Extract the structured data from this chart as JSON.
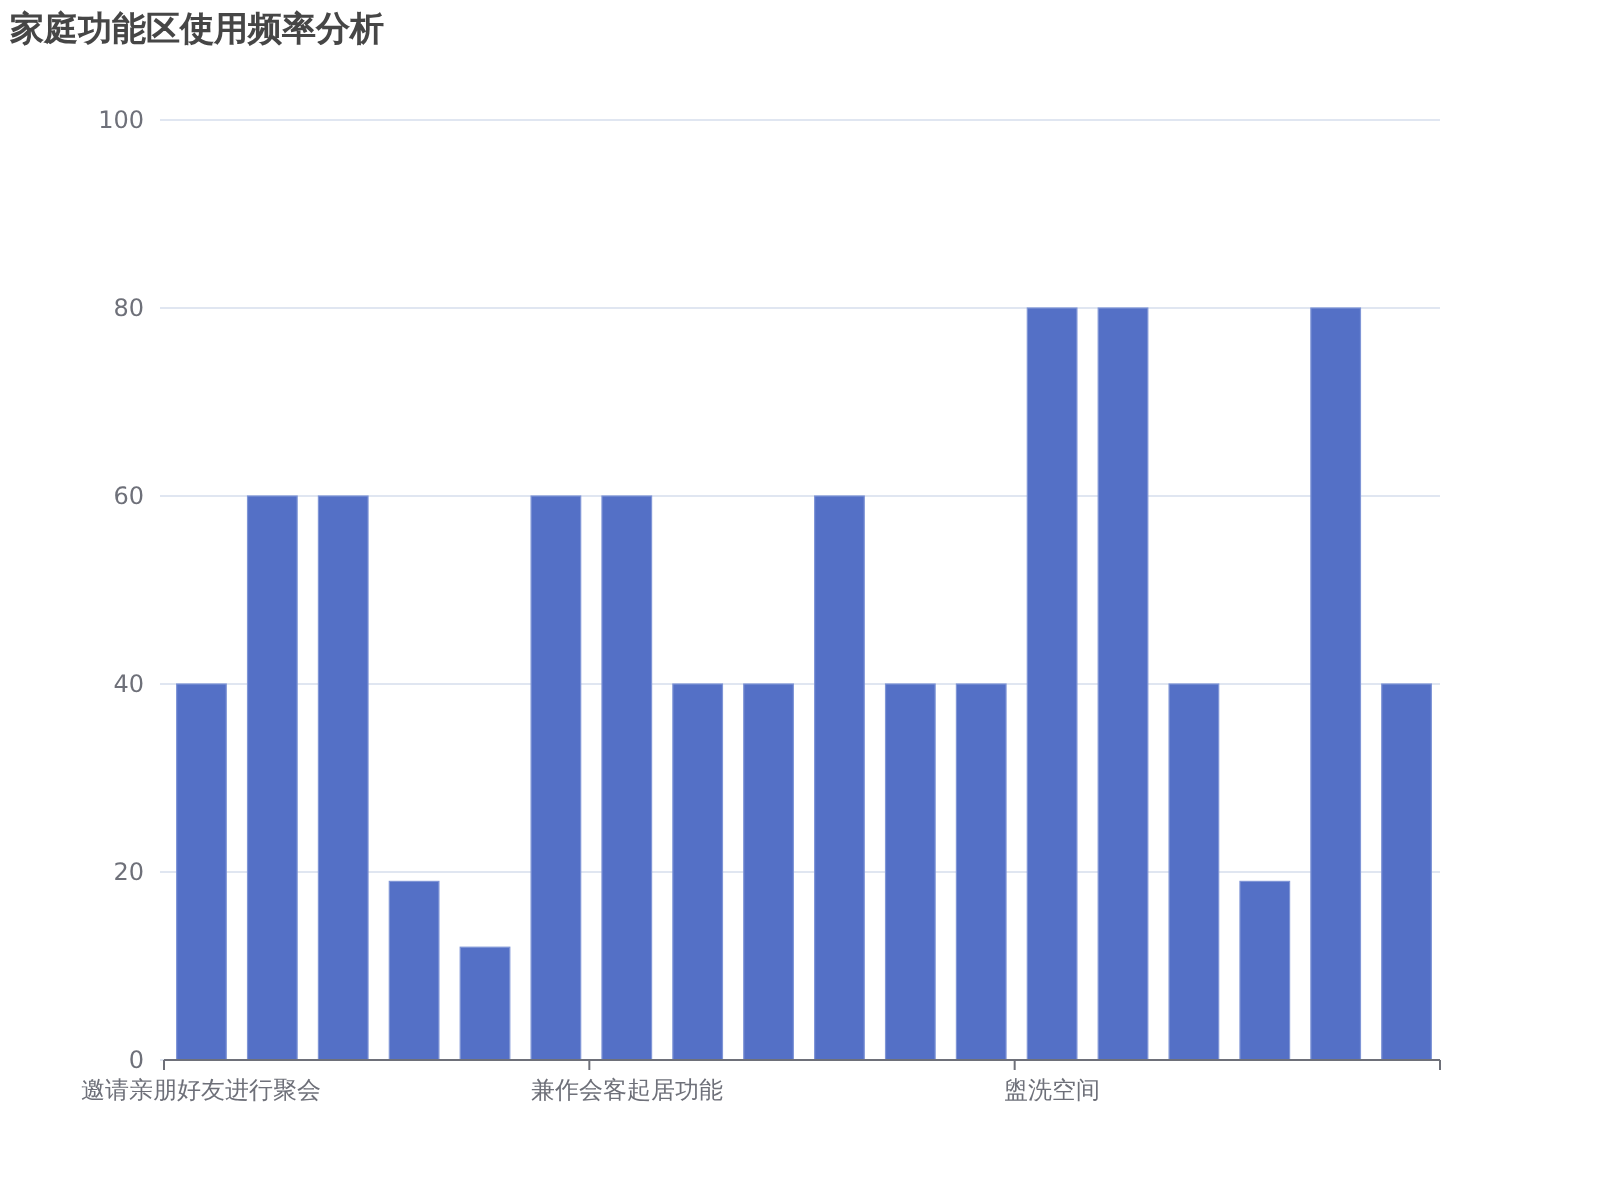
{
  "chart_data": {
    "type": "bar",
    "title": "家庭功能区使用频率分析",
    "categories": [
      "邀请亲朋好友进行聚会",
      null,
      null,
      null,
      null,
      null,
      "兼作会客起居功能",
      null,
      null,
      null,
      null,
      null,
      "盥洗空间",
      null,
      null,
      null,
      null,
      null
    ],
    "values": [
      40,
      60,
      60,
      19,
      12,
      60,
      60,
      40,
      40,
      60,
      40,
      40,
      80,
      80,
      40,
      19,
      80,
      40
    ],
    "color": "#5470c6",
    "ylim": [
      0,
      100
    ],
    "yticks": [
      0,
      20,
      40,
      60,
      80,
      100
    ],
    "grid": "y"
  }
}
